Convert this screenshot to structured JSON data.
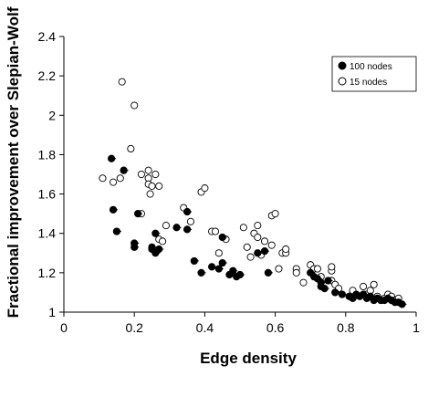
{
  "chart_data": {
    "type": "scatter",
    "title": "",
    "xlabel": "Edge density",
    "ylabel": "Fractional improvement over Slepian-Wolf",
    "xlim": [
      0,
      1
    ],
    "ylim": [
      1,
      2.4
    ],
    "xticks": [
      "0",
      "0.2",
      "0.4",
      "0.6",
      "0.8",
      "1"
    ],
    "yticks": [
      "1",
      "1.2",
      "1.4",
      "1.6",
      "1.8",
      "2",
      "2.2",
      "2.4"
    ],
    "grid": false,
    "legend": "top-right",
    "series": [
      {
        "name": "100 nodes",
        "marker": "filled-circle",
        "color": "#000000",
        "points": [
          [
            0.135,
            1.78
          ],
          [
            0.14,
            1.52
          ],
          [
            0.15,
            1.41
          ],
          [
            0.17,
            1.72
          ],
          [
            0.2,
            1.35
          ],
          [
            0.2,
            1.33
          ],
          [
            0.21,
            1.5
          ],
          [
            0.25,
            1.33
          ],
          [
            0.25,
            1.32
          ],
          [
            0.26,
            1.3
          ],
          [
            0.26,
            1.4
          ],
          [
            0.27,
            1.32
          ],
          [
            0.32,
            1.43
          ],
          [
            0.35,
            1.42
          ],
          [
            0.35,
            1.51
          ],
          [
            0.37,
            1.26
          ],
          [
            0.39,
            1.2
          ],
          [
            0.42,
            1.23
          ],
          [
            0.44,
            1.22
          ],
          [
            0.45,
            1.25
          ],
          [
            0.45,
            1.38
          ],
          [
            0.47,
            1.19
          ],
          [
            0.48,
            1.21
          ],
          [
            0.49,
            1.18
          ],
          [
            0.5,
            1.19
          ],
          [
            0.55,
            1.3
          ],
          [
            0.57,
            1.31
          ],
          [
            0.58,
            1.2
          ],
          [
            0.7,
            1.2
          ],
          [
            0.71,
            1.18
          ],
          [
            0.72,
            1.17
          ],
          [
            0.73,
            1.13
          ],
          [
            0.73,
            1.15
          ],
          [
            0.74,
            1.12
          ],
          [
            0.75,
            1.16
          ],
          [
            0.77,
            1.1
          ],
          [
            0.79,
            1.09
          ],
          [
            0.81,
            1.08
          ],
          [
            0.82,
            1.07
          ],
          [
            0.83,
            1.09
          ],
          [
            0.84,
            1.08
          ],
          [
            0.85,
            1.09
          ],
          [
            0.86,
            1.07
          ],
          [
            0.87,
            1.08
          ],
          [
            0.88,
            1.06
          ],
          [
            0.89,
            1.07
          ],
          [
            0.9,
            1.06
          ],
          [
            0.91,
            1.06
          ],
          [
            0.92,
            1.07
          ],
          [
            0.93,
            1.06
          ],
          [
            0.94,
            1.05
          ],
          [
            0.95,
            1.05
          ],
          [
            0.96,
            1.04
          ]
        ]
      },
      {
        "name": "15 nodes",
        "marker": "open-circle",
        "color": "#000000",
        "points": [
          [
            0.11,
            1.68
          ],
          [
            0.14,
            1.66
          ],
          [
            0.16,
            1.68
          ],
          [
            0.165,
            2.17
          ],
          [
            0.17,
            1.72
          ],
          [
            0.19,
            1.83
          ],
          [
            0.2,
            2.05
          ],
          [
            0.22,
            1.5
          ],
          [
            0.22,
            1.7
          ],
          [
            0.24,
            1.72
          ],
          [
            0.24,
            1.68
          ],
          [
            0.24,
            1.65
          ],
          [
            0.245,
            1.6
          ],
          [
            0.25,
            1.64
          ],
          [
            0.26,
            1.7
          ],
          [
            0.27,
            1.64
          ],
          [
            0.27,
            1.37
          ],
          [
            0.28,
            1.36
          ],
          [
            0.29,
            1.44
          ],
          [
            0.34,
            1.53
          ],
          [
            0.36,
            1.46
          ],
          [
            0.39,
            1.61
          ],
          [
            0.4,
            1.63
          ],
          [
            0.42,
            1.41
          ],
          [
            0.43,
            1.41
          ],
          [
            0.44,
            1.3
          ],
          [
            0.46,
            1.37
          ],
          [
            0.51,
            1.43
          ],
          [
            0.52,
            1.33
          ],
          [
            0.53,
            1.28
          ],
          [
            0.54,
            1.4
          ],
          [
            0.55,
            1.44
          ],
          [
            0.55,
            1.38
          ],
          [
            0.56,
            1.29
          ],
          [
            0.57,
            1.36
          ],
          [
            0.59,
            1.34
          ],
          [
            0.59,
            1.49
          ],
          [
            0.6,
            1.5
          ],
          [
            0.61,
            1.22
          ],
          [
            0.62,
            1.3
          ],
          [
            0.63,
            1.3
          ],
          [
            0.63,
            1.32
          ],
          [
            0.66,
            1.22
          ],
          [
            0.66,
            1.2
          ],
          [
            0.68,
            1.15
          ],
          [
            0.7,
            1.24
          ],
          [
            0.71,
            1.22
          ],
          [
            0.72,
            1.22
          ],
          [
            0.73,
            1.18
          ],
          [
            0.76,
            1.16
          ],
          [
            0.76,
            1.21
          ],
          [
            0.76,
            1.23
          ],
          [
            0.77,
            1.14
          ],
          [
            0.78,
            1.12
          ],
          [
            0.82,
            1.11
          ],
          [
            0.85,
            1.13
          ],
          [
            0.86,
            1.09
          ],
          [
            0.87,
            1.11
          ],
          [
            0.88,
            1.14
          ],
          [
            0.89,
            1.08
          ],
          [
            0.9,
            1.06
          ],
          [
            0.91,
            1.07
          ],
          [
            0.92,
            1.09
          ],
          [
            0.93,
            1.08
          ],
          [
            0.94,
            1.06
          ],
          [
            0.95,
            1.07
          ]
        ]
      }
    ]
  }
}
